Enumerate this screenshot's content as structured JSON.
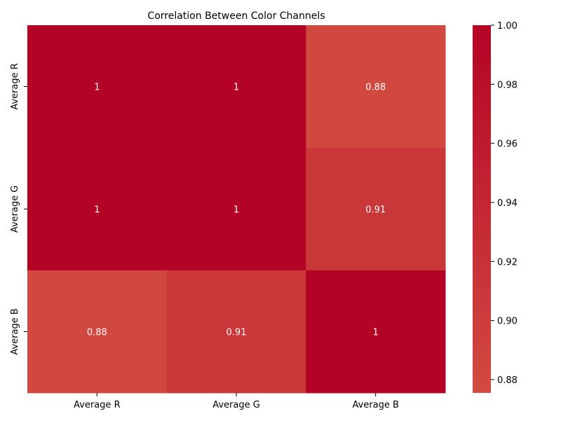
{
  "chart_data": {
    "type": "heatmap",
    "title": "Correlation Between Color Channels",
    "xlabel": "",
    "ylabel": "",
    "x_categories": [
      "Average R",
      "Average G",
      "Average B"
    ],
    "y_categories": [
      "Average R",
      "Average G",
      "Average B"
    ],
    "matrix": [
      [
        1.0,
        1.0,
        0.88
      ],
      [
        1.0,
        1.0,
        0.91
      ],
      [
        0.88,
        0.91,
        1.0
      ]
    ],
    "cell_labels": [
      [
        "1",
        "1",
        "0.88"
      ],
      [
        "1",
        "1",
        "0.91"
      ],
      [
        "0.88",
        "0.91",
        "1"
      ]
    ],
    "colorbar": {
      "range": [
        0.8755,
        1.0
      ],
      "ticks": [
        "0.88",
        "0.90",
        "0.92",
        "0.94",
        "0.96",
        "0.98",
        "1.00"
      ],
      "low_color": "#d24b40",
      "high_color": "#b40426"
    },
    "cell_text_color": "#ffffff",
    "grid": false,
    "legend": "colorbar-right"
  }
}
